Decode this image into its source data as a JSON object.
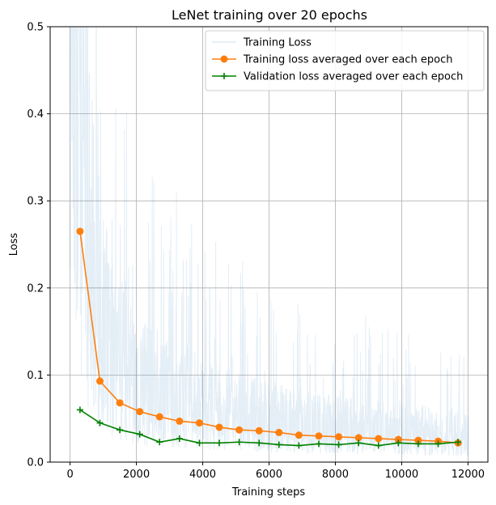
{
  "chart_data": {
    "type": "line",
    "title": "LeNet training over 20 epochs",
    "xlabel": "Training steps",
    "ylabel": "Loss",
    "xlim": [
      -600,
      12600
    ],
    "ylim": [
      0,
      0.5
    ],
    "xticks": [
      0,
      2000,
      4000,
      6000,
      8000,
      10000,
      12000
    ],
    "yticks": [
      0.0,
      0.1,
      0.2,
      0.3,
      0.4,
      0.5
    ],
    "xtick_labels": [
      "0",
      "2000",
      "4000",
      "6000",
      "8000",
      "10000",
      "12000"
    ],
    "ytick_labels": [
      "0.0",
      "0.1",
      "0.2",
      "0.3",
      "0.4",
      "0.5"
    ],
    "grid": true,
    "legend_position": "top-right",
    "series": [
      {
        "name": "Training Loss",
        "style": "noisy-line",
        "color": "#1f77b4",
        "opacity": 0.12,
        "x_range": [
          0,
          12000
        ],
        "trend": [
          [
            0,
            0.5
          ],
          [
            300,
            0.3
          ],
          [
            600,
            0.17
          ],
          [
            1000,
            0.11
          ],
          [
            1500,
            0.08
          ],
          [
            2000,
            0.065
          ],
          [
            3000,
            0.055
          ],
          [
            4000,
            0.048
          ],
          [
            5000,
            0.04
          ],
          [
            6000,
            0.036
          ],
          [
            7000,
            0.032
          ],
          [
            8000,
            0.03
          ],
          [
            9000,
            0.028
          ],
          [
            10000,
            0.026
          ],
          [
            11000,
            0.024
          ],
          [
            12000,
            0.022
          ]
        ]
      },
      {
        "name": "Training loss averaged over each epoch",
        "style": "line-marker-circle",
        "color": "#ff7f0e",
        "x": [
          300,
          900,
          1500,
          2100,
          2700,
          3300,
          3900,
          4500,
          5100,
          5700,
          6300,
          6900,
          7500,
          8100,
          8700,
          9300,
          9900,
          10500,
          11100,
          11700
        ],
        "y": [
          0.265,
          0.093,
          0.068,
          0.058,
          0.052,
          0.047,
          0.045,
          0.04,
          0.037,
          0.036,
          0.034,
          0.031,
          0.03,
          0.029,
          0.028,
          0.027,
          0.026,
          0.025,
          0.024,
          0.022
        ]
      },
      {
        "name": "Validation loss averaged over each epoch",
        "style": "line-marker-plus",
        "color": "#008000",
        "x": [
          300,
          900,
          1500,
          2100,
          2700,
          3300,
          3900,
          4500,
          5100,
          5700,
          6300,
          6900,
          7500,
          8100,
          8700,
          9300,
          9900,
          10500,
          11100,
          11700
        ],
        "y": [
          0.06,
          0.045,
          0.037,
          0.032,
          0.023,
          0.027,
          0.022,
          0.022,
          0.023,
          0.022,
          0.02,
          0.019,
          0.021,
          0.02,
          0.022,
          0.019,
          0.022,
          0.021,
          0.021,
          0.023
        ]
      }
    ]
  }
}
